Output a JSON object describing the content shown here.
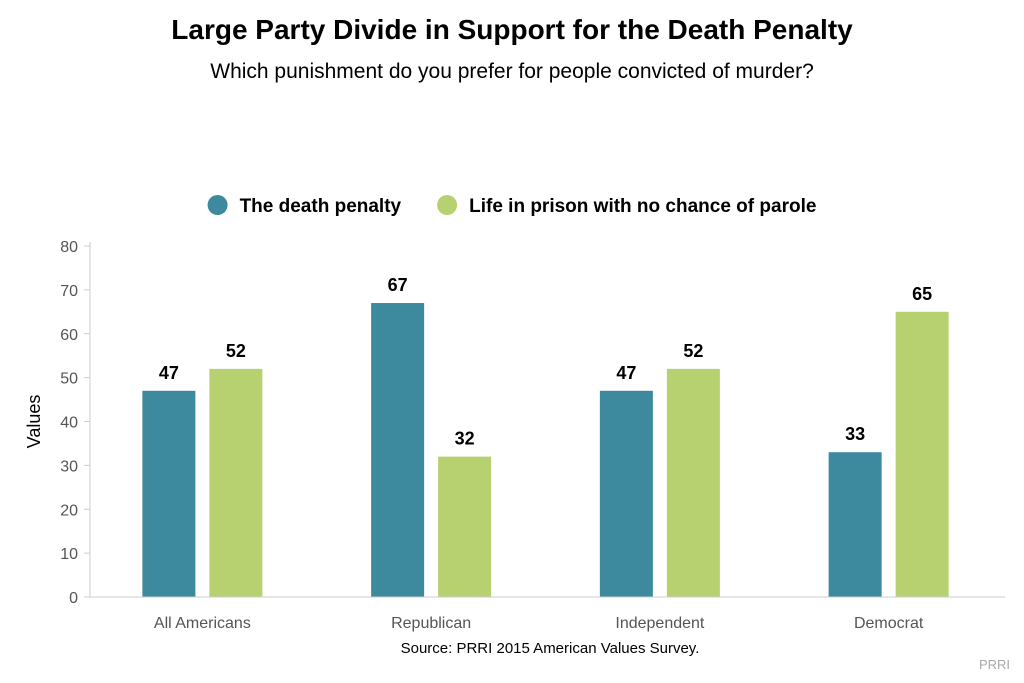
{
  "chart_data": {
    "type": "bar",
    "title": "Large Party Divide in Support for the Death Penalty",
    "subtitle": "Which punishment do you prefer for people convicted of murder?",
    "ylabel": "Values",
    "ylim": [
      0,
      80
    ],
    "yticks": [
      0,
      10,
      20,
      30,
      40,
      50,
      60,
      70,
      80
    ],
    "categories": [
      "All Americans",
      "Republican",
      "Independent",
      "Democrat"
    ],
    "series": [
      {
        "name": "The death penalty",
        "color": "#3d8a9e",
        "values": [
          47,
          67,
          47,
          33
        ]
      },
      {
        "name": "Life in prison with no chance of parole",
        "color": "#b8d170",
        "values": [
          52,
          32,
          52,
          65
        ]
      }
    ],
    "legend_position": "top-center",
    "grid": false,
    "source": "Source: PRRI 2015 American Values Survey.",
    "credit": "PRRI"
  }
}
